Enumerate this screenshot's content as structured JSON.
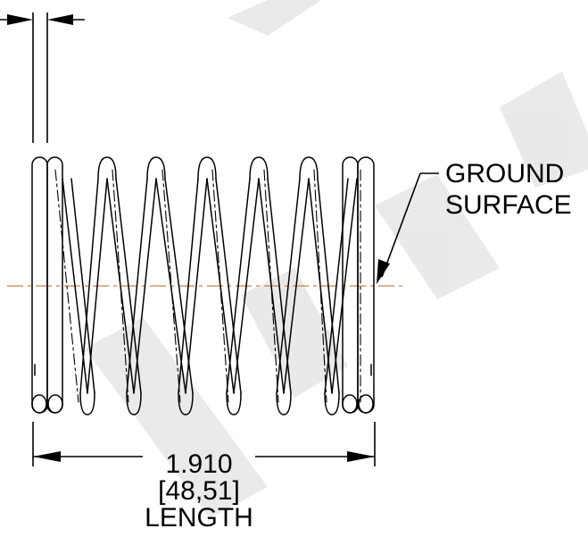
{
  "callout": {
    "line1": "GROUND",
    "line2": "SURFACE"
  },
  "dimension": {
    "value": "1.910",
    "metric": "[48,51]",
    "label": "LENGTH"
  },
  "colors": {
    "line": "#000000",
    "centerline": "#c8824b",
    "watermark": "#dcdcdc"
  }
}
